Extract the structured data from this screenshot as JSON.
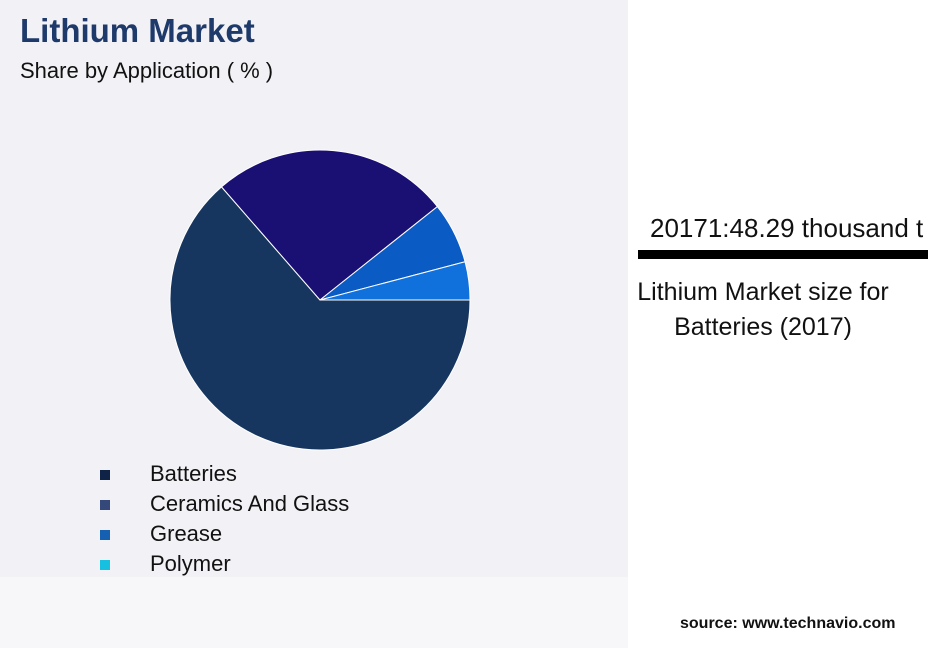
{
  "chart_data": {
    "type": "pie",
    "title": "Lithium Market",
    "subtitle": "Share by Application ( % )",
    "categories": [
      "Batteries",
      "Ceramics And Glass",
      "Grease",
      "Polymer"
    ],
    "values": [
      63.6,
      25.7,
      6.6,
      4.1
    ],
    "colors": [
      "#16365f",
      "#1a0f73",
      "#0a5bc4",
      "#1070dc"
    ],
    "legend_colors": [
      "#0f2347",
      "#34497a",
      "#1560b0",
      "#17c0e0"
    ]
  },
  "side_panel": {
    "stat": "20171:48.29 thousand t",
    "caption": "Lithium Market size for Batteries (2017)"
  },
  "source": "source: www.technavio.com"
}
